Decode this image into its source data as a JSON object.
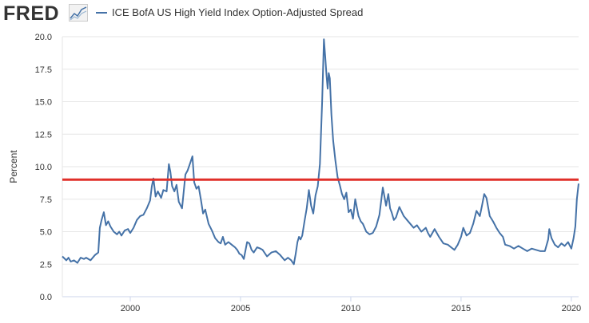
{
  "header": {
    "logo_text": "FRED",
    "logo_icon": "fred-chart-icon",
    "legend_label": "ICE BofA US High Yield Index Option-Adjusted Spread"
  },
  "colors": {
    "series": "#4572a7",
    "overlay": "#e0302a",
    "grid": "#e6e6e6",
    "text": "#333333",
    "logo_accent": "#4572a7"
  },
  "chart_data": {
    "type": "line",
    "title": "ICE BofA US High Yield Index Option-Adjusted Spread",
    "xlabel": "",
    "ylabel": "Percent",
    "xlim": [
      1996.92,
      2020.33
    ],
    "ylim": [
      0,
      20
    ],
    "yticks": [
      0.0,
      2.5,
      5.0,
      7.5,
      10.0,
      12.5,
      15.0,
      17.5,
      20.0
    ],
    "ytick_labels": [
      "0.0",
      "2.5",
      "5.0",
      "7.5",
      "10.0",
      "12.5",
      "15.0",
      "17.5",
      "20.0"
    ],
    "xticks": [
      2000,
      2005,
      2010,
      2015,
      2020
    ],
    "xtick_labels": [
      "2000",
      "2005",
      "2010",
      "2015",
      "2020"
    ],
    "grid": true,
    "reference_line": {
      "y": 9.0,
      "label": ""
    },
    "series": [
      {
        "name": "ICE BofA US High Yield Index Option-Adjusted Spread",
        "x": [
          1996.92,
          1997.1,
          1997.2,
          1997.3,
          1997.45,
          1997.6,
          1997.75,
          1997.9,
          1998.0,
          1998.2,
          1998.4,
          1998.55,
          1998.62,
          1998.7,
          1998.8,
          1998.9,
          1999.0,
          1999.1,
          1999.25,
          1999.4,
          1999.5,
          1999.6,
          1999.75,
          1999.9,
          2000.0,
          2000.15,
          2000.3,
          2000.45,
          2000.6,
          2000.75,
          2000.9,
          2000.98,
          2001.05,
          2001.15,
          2001.25,
          2001.4,
          2001.5,
          2001.65,
          2001.75,
          2001.82,
          2001.9,
          2002.0,
          2002.1,
          2002.2,
          2002.35,
          2002.5,
          2002.6,
          2002.72,
          2002.82,
          2002.9,
          2003.0,
          2003.1,
          2003.2,
          2003.3,
          2003.4,
          2003.55,
          2003.7,
          2003.85,
          2004.0,
          2004.1,
          2004.2,
          2004.3,
          2004.45,
          2004.6,
          2004.75,
          2004.85,
          2004.95,
          2005.05,
          2005.15,
          2005.3,
          2005.4,
          2005.5,
          2005.6,
          2005.75,
          2005.9,
          2006.0,
          2006.2,
          2006.4,
          2006.6,
          2006.8,
          2007.0,
          2007.15,
          2007.3,
          2007.42,
          2007.5,
          2007.58,
          2007.65,
          2007.72,
          2007.8,
          2007.9,
          2008.0,
          2008.1,
          2008.2,
          2008.3,
          2008.4,
          2008.5,
          2008.6,
          2008.7,
          2008.78,
          2008.84,
          2008.9,
          2008.95,
          2009.0,
          2009.05,
          2009.12,
          2009.2,
          2009.3,
          2009.4,
          2009.5,
          2009.6,
          2009.7,
          2009.8,
          2009.9,
          2010.0,
          2010.1,
          2010.2,
          2010.35,
          2010.45,
          2010.55,
          2010.7,
          2010.85,
          2011.0,
          2011.15,
          2011.3,
          2011.45,
          2011.6,
          2011.7,
          2011.78,
          2011.85,
          2011.95,
          2012.05,
          2012.2,
          2012.4,
          2012.55,
          2012.7,
          2012.85,
          2013.0,
          2013.2,
          2013.4,
          2013.5,
          2013.6,
          2013.8,
          2014.0,
          2014.2,
          2014.4,
          2014.55,
          2014.7,
          2014.85,
          2015.0,
          2015.1,
          2015.25,
          2015.4,
          2015.55,
          2015.7,
          2015.85,
          2015.95,
          2016.05,
          2016.15,
          2016.3,
          2016.45,
          2016.6,
          2016.75,
          2016.9,
          2017.0,
          2017.2,
          2017.4,
          2017.6,
          2017.8,
          2018.0,
          2018.2,
          2018.4,
          2018.6,
          2018.8,
          2018.95,
          2019.0,
          2019.1,
          2019.25,
          2019.4,
          2019.55,
          2019.7,
          2019.85,
          2020.0,
          2020.1,
          2020.18,
          2020.25,
          2020.33
        ],
        "values": [
          3.1,
          2.8,
          3.0,
          2.7,
          2.8,
          2.6,
          3.0,
          2.9,
          3.0,
          2.8,
          3.2,
          3.4,
          5.3,
          5.9,
          6.5,
          5.5,
          5.8,
          5.4,
          5.0,
          4.8,
          5.0,
          4.7,
          5.1,
          5.2,
          4.9,
          5.3,
          5.9,
          6.2,
          6.3,
          6.8,
          7.4,
          8.5,
          9.1,
          7.7,
          8.1,
          7.6,
          8.2,
          8.1,
          10.2,
          9.6,
          8.5,
          8.1,
          8.6,
          7.3,
          6.8,
          9.4,
          9.7,
          10.3,
          10.8,
          8.8,
          8.3,
          8.5,
          7.5,
          6.4,
          6.7,
          5.6,
          5.1,
          4.5,
          4.2,
          4.1,
          4.6,
          4.0,
          4.2,
          4.0,
          3.8,
          3.6,
          3.3,
          3.2,
          2.9,
          4.2,
          4.1,
          3.6,
          3.4,
          3.8,
          3.7,
          3.6,
          3.1,
          3.4,
          3.5,
          3.2,
          2.8,
          3.0,
          2.8,
          2.5,
          3.3,
          4.2,
          4.6,
          4.4,
          4.7,
          5.8,
          6.8,
          8.2,
          7.0,
          6.4,
          7.8,
          8.5,
          10.2,
          15.0,
          19.8,
          18.5,
          17.0,
          16.0,
          17.2,
          16.8,
          14.0,
          12.0,
          10.5,
          9.2,
          8.6,
          7.9,
          7.5,
          8.0,
          6.5,
          6.7,
          6.0,
          7.5,
          6.2,
          5.8,
          5.6,
          5.0,
          4.8,
          4.9,
          5.4,
          6.3,
          8.4,
          7.0,
          7.9,
          6.8,
          6.5,
          5.9,
          6.1,
          6.9,
          6.2,
          5.9,
          5.6,
          5.3,
          5.5,
          5.0,
          5.3,
          4.9,
          4.6,
          5.2,
          4.6,
          4.1,
          4.0,
          3.8,
          3.6,
          4.0,
          4.6,
          5.3,
          4.7,
          4.9,
          5.6,
          6.6,
          6.2,
          7.0,
          7.9,
          7.6,
          6.2,
          5.8,
          5.3,
          4.9,
          4.6,
          4.0,
          3.9,
          3.7,
          3.9,
          3.7,
          3.5,
          3.7,
          3.6,
          3.5,
          3.5,
          4.4,
          5.2,
          4.5,
          4.0,
          3.8,
          4.1,
          3.9,
          4.2,
          3.7,
          4.5,
          5.4,
          7.5,
          8.7
        ]
      }
    ]
  }
}
